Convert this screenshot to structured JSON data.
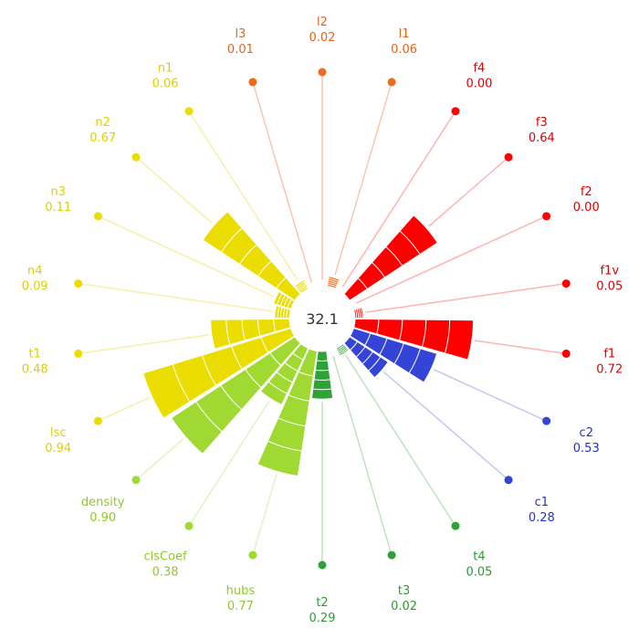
{
  "chart_data": {
    "type": "radial-bar",
    "center_value": "32.1",
    "max_value": 1.0,
    "segments_per_bar": 5,
    "categories": [
      {
        "name": "l2",
        "value": 0.02,
        "value_label": "0.02",
        "group": "l"
      },
      {
        "name": "l1",
        "value": 0.06,
        "value_label": "0.06",
        "group": "l"
      },
      {
        "name": "f4",
        "value": 0.0,
        "value_label": "0.00",
        "group": "f"
      },
      {
        "name": "f3",
        "value": 0.64,
        "value_label": "0.64",
        "group": "f"
      },
      {
        "name": "f2",
        "value": 0.0,
        "value_label": "0.00",
        "group": "f"
      },
      {
        "name": "f1v",
        "value": 0.05,
        "value_label": "0.05",
        "group": "f"
      },
      {
        "name": "f1",
        "value": 0.72,
        "value_label": "0.72",
        "group": "f"
      },
      {
        "name": "c2",
        "value": 0.53,
        "value_label": "0.53",
        "group": "c"
      },
      {
        "name": "c1",
        "value": 0.28,
        "value_label": "0.28",
        "group": "c"
      },
      {
        "name": "t4",
        "value": 0.05,
        "value_label": "0.05",
        "group": "t"
      },
      {
        "name": "t3",
        "value": 0.02,
        "value_label": "0.02",
        "group": "t"
      },
      {
        "name": "t2",
        "value": 0.29,
        "value_label": "0.29",
        "group": "t"
      },
      {
        "name": "hubs",
        "value": 0.77,
        "value_label": "0.77",
        "group": "d"
      },
      {
        "name": "clsCoef",
        "value": 0.38,
        "value_label": "0.38",
        "group": "d"
      },
      {
        "name": "density",
        "value": 0.9,
        "value_label": "0.90",
        "group": "d"
      },
      {
        "name": "lsc",
        "value": 0.94,
        "value_label": "0.94",
        "group": "n"
      },
      {
        "name": "t1",
        "value": 0.48,
        "value_label": "0.48",
        "group": "n"
      },
      {
        "name": "n4",
        "value": 0.09,
        "value_label": "0.09",
        "group": "n"
      },
      {
        "name": "n3",
        "value": 0.11,
        "value_label": "0.11",
        "group": "n"
      },
      {
        "name": "n2",
        "value": 0.67,
        "value_label": "0.67",
        "group": "n"
      },
      {
        "name": "n1",
        "value": 0.06,
        "value_label": "0.06",
        "group": "n"
      },
      {
        "name": "l3",
        "value": 0.01,
        "value_label": "0.01",
        "group": "l"
      }
    ],
    "group_colors": {
      "l": {
        "bar": "#f26b1d",
        "text": "#e8621a",
        "line": "#f9c6ac"
      },
      "f": {
        "bar": "#ff0000",
        "text": "#e00000",
        "line": "#ffb3b3"
      },
      "c": {
        "bar": "#3344d6",
        "text": "#2233cc",
        "line": "#c3c8f0"
      },
      "t": {
        "bar": "#2ea236",
        "text": "#2e9a36",
        "line": "#bfe3c2"
      },
      "d": {
        "bar": "#a0d932",
        "text": "#90c926",
        "line": "#e2f2c4"
      },
      "n": {
        "bar": "#ecdd00",
        "text": "#e0d000",
        "line": "#f7f0a8"
      }
    }
  }
}
